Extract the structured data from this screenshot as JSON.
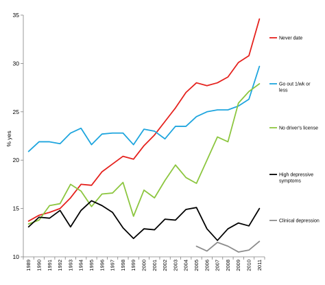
{
  "chart_data": {
    "type": "line",
    "title": "",
    "xlabel": "",
    "ylabel": "% yes",
    "x": [
      "1989",
      "1990",
      "1991",
      "1992",
      "1993",
      "1994",
      "1995",
      "1996",
      "1997",
      "1998",
      "1999",
      "2000",
      "2001",
      "2002",
      "2003",
      "2004",
      "2005",
      "2006",
      "2007",
      "2008",
      "2009",
      "2010",
      "2011"
    ],
    "ylim": [
      10,
      35
    ],
    "yticks": [
      10,
      15,
      20,
      25,
      30,
      35
    ],
    "grid": false,
    "legend_placement": "right",
    "series": [
      {
        "name": "Never date",
        "color": "#e5211d",
        "values": [
          13.7,
          14.3,
          14.6,
          15.0,
          16.1,
          17.5,
          17.4,
          18.8,
          19.6,
          20.4,
          20.1,
          21.5,
          22.6,
          24.0,
          25.4,
          27.0,
          28.0,
          27.7,
          28.0,
          28.6,
          30.1,
          30.8,
          34.6
        ]
      },
      {
        "name": "Go out 1/wk or less",
        "color": "#1ea5de",
        "values": [
          20.9,
          21.9,
          21.9,
          21.7,
          22.8,
          23.3,
          21.6,
          22.7,
          22.8,
          22.8,
          21.6,
          23.2,
          23.0,
          22.2,
          23.5,
          23.5,
          24.5,
          25.0,
          25.2,
          25.2,
          25.6,
          26.3,
          29.7
        ]
      },
      {
        "name": "No driver's license",
        "color": "#8cc63f",
        "values": [
          13.4,
          13.8,
          15.3,
          15.5,
          17.5,
          16.8,
          15.2,
          16.5,
          16.6,
          17.7,
          14.2,
          16.9,
          16.1,
          17.9,
          19.5,
          18.2,
          17.6,
          20.0,
          22.4,
          21.9,
          25.9,
          27.1,
          27.9
        ]
      },
      {
        "name": "High depressive symptoms",
        "color": "#000000",
        "values": [
          13.1,
          14.1,
          14.0,
          14.8,
          13.1,
          14.8,
          15.8,
          15.3,
          14.6,
          13.0,
          11.9,
          12.9,
          12.8,
          13.9,
          13.8,
          14.9,
          15.1,
          12.9,
          11.7,
          12.9,
          13.5,
          13.2,
          15.0
        ]
      },
      {
        "name": "Clinical depression",
        "color": "#8c8c8c",
        "values": [
          null,
          null,
          null,
          null,
          null,
          null,
          null,
          null,
          null,
          null,
          null,
          null,
          null,
          null,
          null,
          null,
          11.1,
          10.6,
          11.5,
          11.1,
          10.5,
          10.7,
          11.6
        ]
      }
    ]
  }
}
